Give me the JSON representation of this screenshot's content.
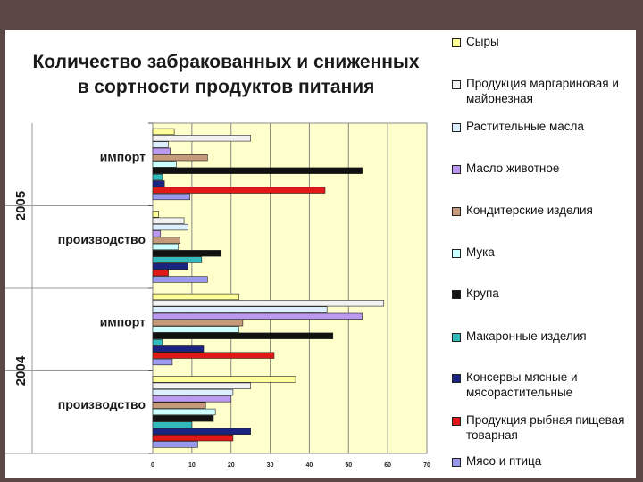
{
  "chart_data": {
    "type": "bar",
    "orientation": "horizontal",
    "title": "Количество забракованных и сниженных в сортности продуктов питания",
    "title_lines": [
      "Количество забракованных и сниженных",
      "в сортности продуктов питания"
    ],
    "xlim": [
      0,
      70
    ],
    "x_ticks": [
      "0",
      "10",
      "20",
      "30",
      "40",
      "50",
      "60",
      "70"
    ],
    "grid": true,
    "legend_position": "right",
    "year_groups": [
      {
        "year": "2005",
        "categories": [
          "импорт",
          "производство"
        ]
      },
      {
        "year": "2004",
        "categories": [
          "импорт",
          "производство"
        ]
      }
    ],
    "series": [
      {
        "name": "Сыры",
        "color": "#ffff99",
        "values": [
          5.5,
          1.5,
          22,
          36.5
        ]
      },
      {
        "name": "Продукция маргариновая и майонезная",
        "color": "#f2f2f2",
        "values": [
          25,
          8,
          59,
          25
        ]
      },
      {
        "name": "Растительные  масла",
        "color": "#ddeeff",
        "values": [
          4,
          9,
          44.5,
          20.5
        ]
      },
      {
        "name": "Масло животное",
        "color": "#bb99ee",
        "values": [
          4.5,
          2,
          53.5,
          20
        ]
      },
      {
        "name": "Кондитерские изделия",
        "color": "#c49a7a",
        "values": [
          14,
          7,
          23,
          13.5
        ]
      },
      {
        "name": "Мука",
        "color": "#ccffff",
        "values": [
          6,
          6.5,
          22,
          16
        ]
      },
      {
        "name": "Крупа",
        "color": "#111111",
        "values": [
          53.5,
          17.5,
          46,
          15.5
        ]
      },
      {
        "name": "Макаронные изделия",
        "color": "#33bbbb",
        "values": [
          2.5,
          12.5,
          2.5,
          10
        ]
      },
      {
        "name": "Консервы мясные и мясорастительные",
        "color": "#1a237e",
        "values": [
          3,
          9,
          13,
          25
        ]
      },
      {
        "name": "Продукция рыбная пищевая товарная",
        "color": "#e01818",
        "values": [
          44,
          4,
          31,
          20.5
        ]
      },
      {
        "name": "Мясо и птица",
        "color": "#9999ee",
        "values": [
          9.5,
          14,
          5,
          11.5
        ]
      }
    ]
  },
  "legend": [
    {
      "lines": [
        "Сыры"
      ]
    },
    {
      "lines": [
        "Продукция маргариновая и",
        "майонезная"
      ]
    },
    {
      "lines": [
        "Растительные  масла"
      ]
    },
    {
      "lines": [
        "Масло животное"
      ]
    },
    {
      "lines": [
        "Кондитерские изделия"
      ]
    },
    {
      "lines": [
        "Мука"
      ]
    },
    {
      "lines": [
        "Крупа"
      ]
    },
    {
      "lines": [
        "Макаронные изделия"
      ]
    },
    {
      "lines": [
        "Консервы мясные и",
        "мясорастительные"
      ]
    },
    {
      "lines": [
        "Продукция рыбная пищевая",
        "товарная"
      ]
    },
    {
      "lines": [
        "Мясо и птица"
      ]
    }
  ]
}
